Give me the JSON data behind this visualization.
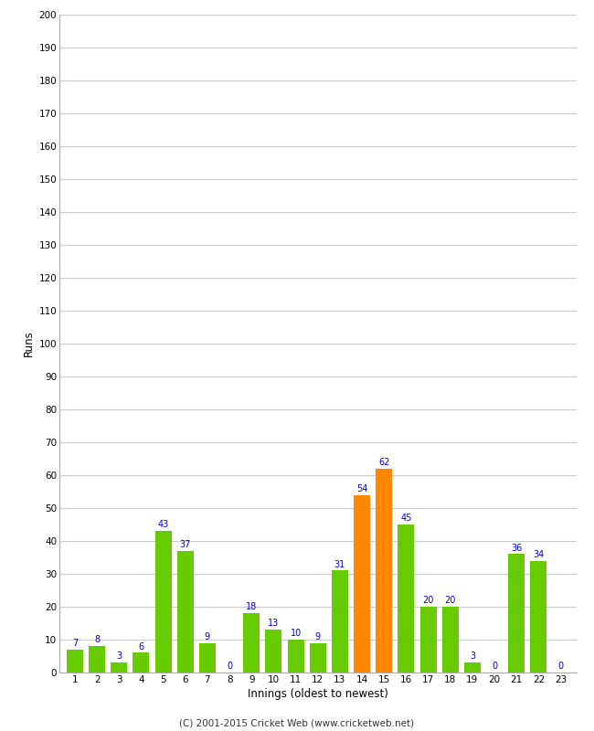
{
  "innings": [
    1,
    2,
    3,
    4,
    5,
    6,
    7,
    8,
    9,
    10,
    11,
    12,
    13,
    14,
    15,
    16,
    17,
    18,
    19,
    20,
    21,
    22,
    23
  ],
  "values": [
    7,
    8,
    3,
    6,
    43,
    37,
    9,
    0,
    18,
    13,
    10,
    9,
    31,
    54,
    62,
    45,
    20,
    20,
    3,
    0,
    36,
    34,
    0
  ],
  "colors": [
    "#66cc00",
    "#66cc00",
    "#66cc00",
    "#66cc00",
    "#66cc00",
    "#66cc00",
    "#66cc00",
    "#66cc00",
    "#66cc00",
    "#66cc00",
    "#66cc00",
    "#66cc00",
    "#66cc00",
    "#ff8800",
    "#ff8800",
    "#66cc00",
    "#66cc00",
    "#66cc00",
    "#66cc00",
    "#66cc00",
    "#66cc00",
    "#66cc00",
    "#66cc00"
  ],
  "xlabel": "Innings (oldest to newest)",
  "ylabel": "Runs",
  "ylim": [
    0,
    200
  ],
  "yticks": [
    0,
    10,
    20,
    30,
    40,
    50,
    60,
    70,
    80,
    90,
    100,
    110,
    120,
    130,
    140,
    150,
    160,
    170,
    180,
    190,
    200
  ],
  "label_color": "#0000cc",
  "footer": "(C) 2001-2015 Cricket Web (www.cricketweb.net)",
  "background_color": "#ffffff",
  "plot_bg_color": "#ffffff",
  "grid_color": "#cccccc",
  "spine_color": "#aaaaaa"
}
